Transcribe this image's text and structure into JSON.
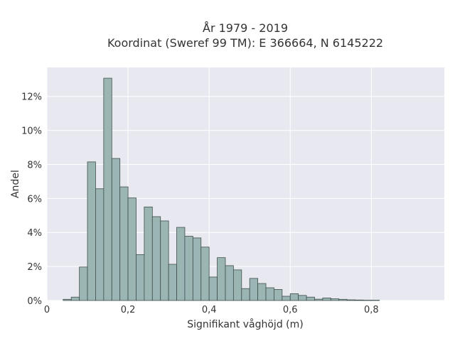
{
  "chart_data": {
    "type": "bar",
    "title_lines": [
      "År 1979 - 2019",
      "Koordinat (Sweref 99 TM): E 366664, N 6145222"
    ],
    "xlabel": "Signifikant våghöjd (m)",
    "ylabel": "Andel",
    "xlim": [
      0,
      0.98
    ],
    "ylim": [
      0,
      0.137
    ],
    "x_ticks": [
      0,
      0.2,
      0.4,
      0.6,
      0.8
    ],
    "x_tick_labels": [
      "0",
      "0,2",
      "0,4",
      "0,6",
      "0,8"
    ],
    "y_ticks": [
      0,
      0.02,
      0.04,
      0.06,
      0.08,
      0.1,
      0.12
    ],
    "y_tick_labels": [
      "0%",
      "2%",
      "4%",
      "6%",
      "8%",
      "10%",
      "12%"
    ],
    "bin_width": 0.02,
    "x": [
      0.04,
      0.06,
      0.08,
      0.1,
      0.12,
      0.14,
      0.16,
      0.18,
      0.2,
      0.22,
      0.24,
      0.26,
      0.28,
      0.3,
      0.32,
      0.34,
      0.36,
      0.38,
      0.4,
      0.42,
      0.44,
      0.46,
      0.48,
      0.5,
      0.52,
      0.54,
      0.56,
      0.58,
      0.6,
      0.62,
      0.64,
      0.66,
      0.68,
      0.7,
      0.72,
      0.74,
      0.76,
      0.78,
      0.8
    ],
    "values": [
      0.0007,
      0.002,
      0.0197,
      0.0815,
      0.0657,
      0.1307,
      0.0835,
      0.0668,
      0.0603,
      0.027,
      0.055,
      0.0493,
      0.0468,
      0.0213,
      0.043,
      0.0378,
      0.0368,
      0.0314,
      0.0138,
      0.0252,
      0.0205,
      0.018,
      0.007,
      0.013,
      0.01,
      0.0075,
      0.0065,
      0.0025,
      0.004,
      0.003,
      0.002,
      0.0008,
      0.0015,
      0.001,
      0.0007,
      0.0004,
      0.0003,
      0.0002,
      0.0002
    ],
    "colors": {
      "bar_fill": "#9bb5b4",
      "bar_edge": "#3f4f4e",
      "plot_bg": "#e8e8f0",
      "grid": "#ffffff"
    },
    "grid": true
  }
}
